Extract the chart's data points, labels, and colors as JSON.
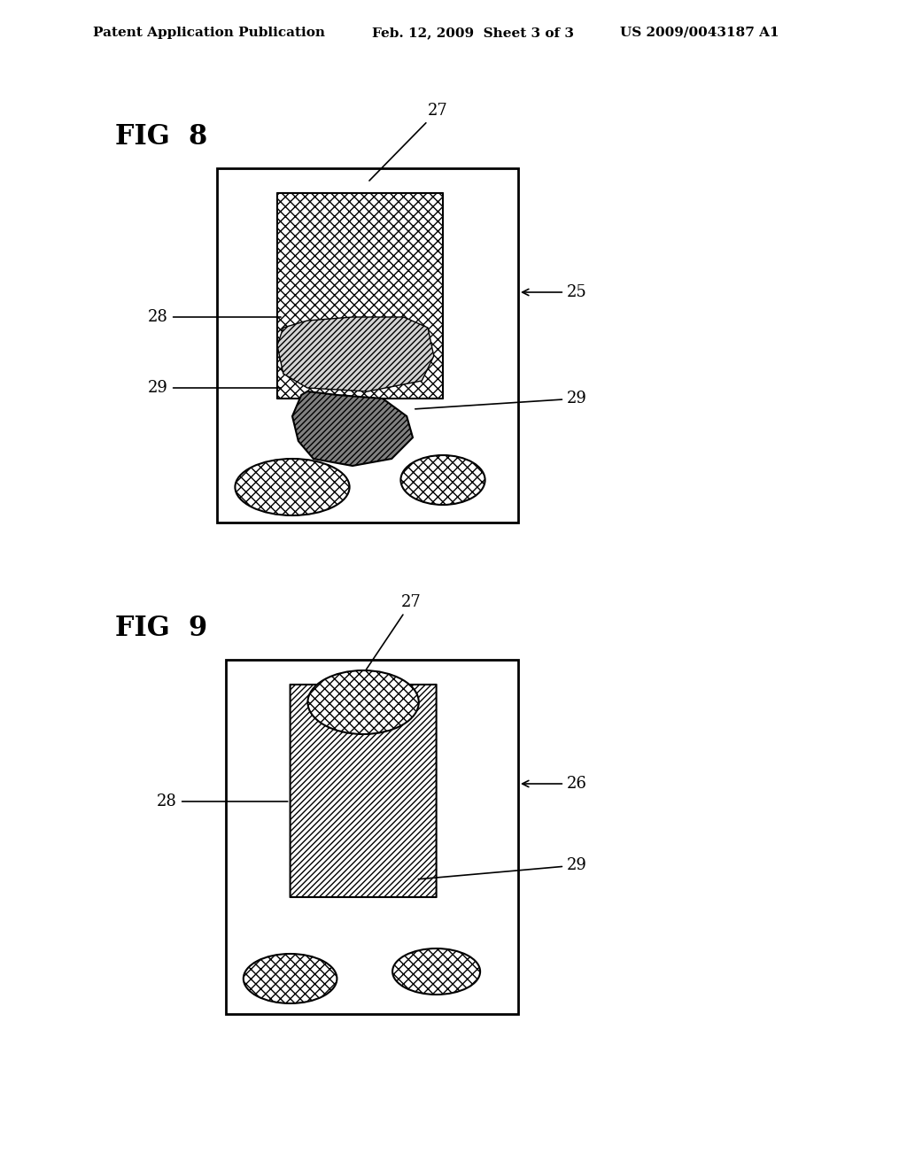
{
  "bg_color": "#ffffff",
  "header_left": "Patent Application Publication",
  "header_mid": "Feb. 12, 2009  Sheet 3 of 3",
  "header_right": "US 2009/0043187 A1",
  "fig8_label": "FIG  8",
  "fig9_label": "FIG  9",
  "label_27": "27",
  "label_28": "28",
  "label_29a": "29",
  "label_29b": "29",
  "label_25": "25",
  "label_26": "26"
}
